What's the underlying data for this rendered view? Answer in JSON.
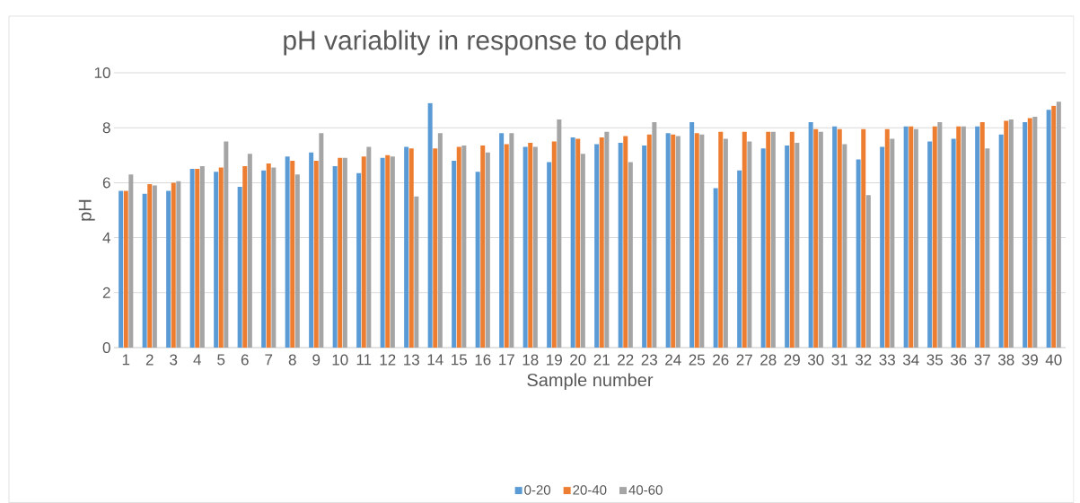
{
  "chart_data": {
    "type": "bar",
    "title": "pH variablity in response to depth",
    "xlabel": "Sample number",
    "ylabel": "pH",
    "categories": [
      "1",
      "2",
      "3",
      "4",
      "5",
      "6",
      "7",
      "8",
      "9",
      "10",
      "11",
      "12",
      "13",
      "14",
      "15",
      "16",
      "17",
      "18",
      "19",
      "20",
      "21",
      "22",
      "23",
      "24",
      "25",
      "26",
      "27",
      "28",
      "29",
      "30",
      "31",
      "32",
      "33",
      "34",
      "35",
      "36",
      "37",
      "38",
      "39",
      "40"
    ],
    "series": [
      {
        "name": "0-20",
        "color": "#5b9bd5",
        "values": [
          5.7,
          5.6,
          5.7,
          6.5,
          6.4,
          5.85,
          6.45,
          6.95,
          7.1,
          6.6,
          6.35,
          6.9,
          7.3,
          8.9,
          6.8,
          6.4,
          7.8,
          7.3,
          6.75,
          7.65,
          7.4,
          7.45,
          7.35,
          7.8,
          8.2,
          5.8,
          6.45,
          7.25,
          7.35,
          8.2,
          8.05,
          6.85,
          7.3,
          8.05,
          7.5,
          7.6,
          8.05,
          7.75,
          8.2,
          8.65
        ]
      },
      {
        "name": "20-40",
        "color": "#ed7d31",
        "values": [
          5.7,
          5.95,
          6.0,
          6.5,
          6.55,
          6.6,
          6.7,
          6.8,
          6.8,
          6.9,
          6.95,
          7.0,
          7.25,
          7.25,
          7.3,
          7.35,
          7.4,
          7.45,
          7.5,
          7.6,
          7.65,
          7.7,
          7.75,
          7.75,
          7.8,
          7.85,
          7.85,
          7.85,
          7.85,
          7.95,
          7.95,
          7.95,
          7.95,
          8.05,
          8.05,
          8.05,
          8.2,
          8.25,
          8.35,
          8.8
        ]
      },
      {
        "name": "40-60",
        "color": "#a5a5a5",
        "values": [
          6.3,
          5.9,
          6.05,
          6.6,
          7.5,
          7.05,
          6.55,
          6.3,
          7.8,
          6.9,
          7.3,
          6.95,
          5.5,
          7.8,
          7.35,
          7.1,
          7.8,
          7.3,
          8.3,
          7.05,
          7.85,
          6.75,
          8.2,
          7.7,
          7.75,
          7.6,
          7.5,
          7.85,
          7.45,
          7.85,
          7.4,
          5.55,
          7.6,
          7.95,
          8.2,
          8.05,
          7.25,
          8.3,
          8.4,
          8.95
        ]
      }
    ],
    "ylim": [
      0,
      10
    ],
    "yticks": [
      0,
      2,
      4,
      6,
      8,
      10
    ],
    "grid": "y",
    "legend": "bottom"
  }
}
